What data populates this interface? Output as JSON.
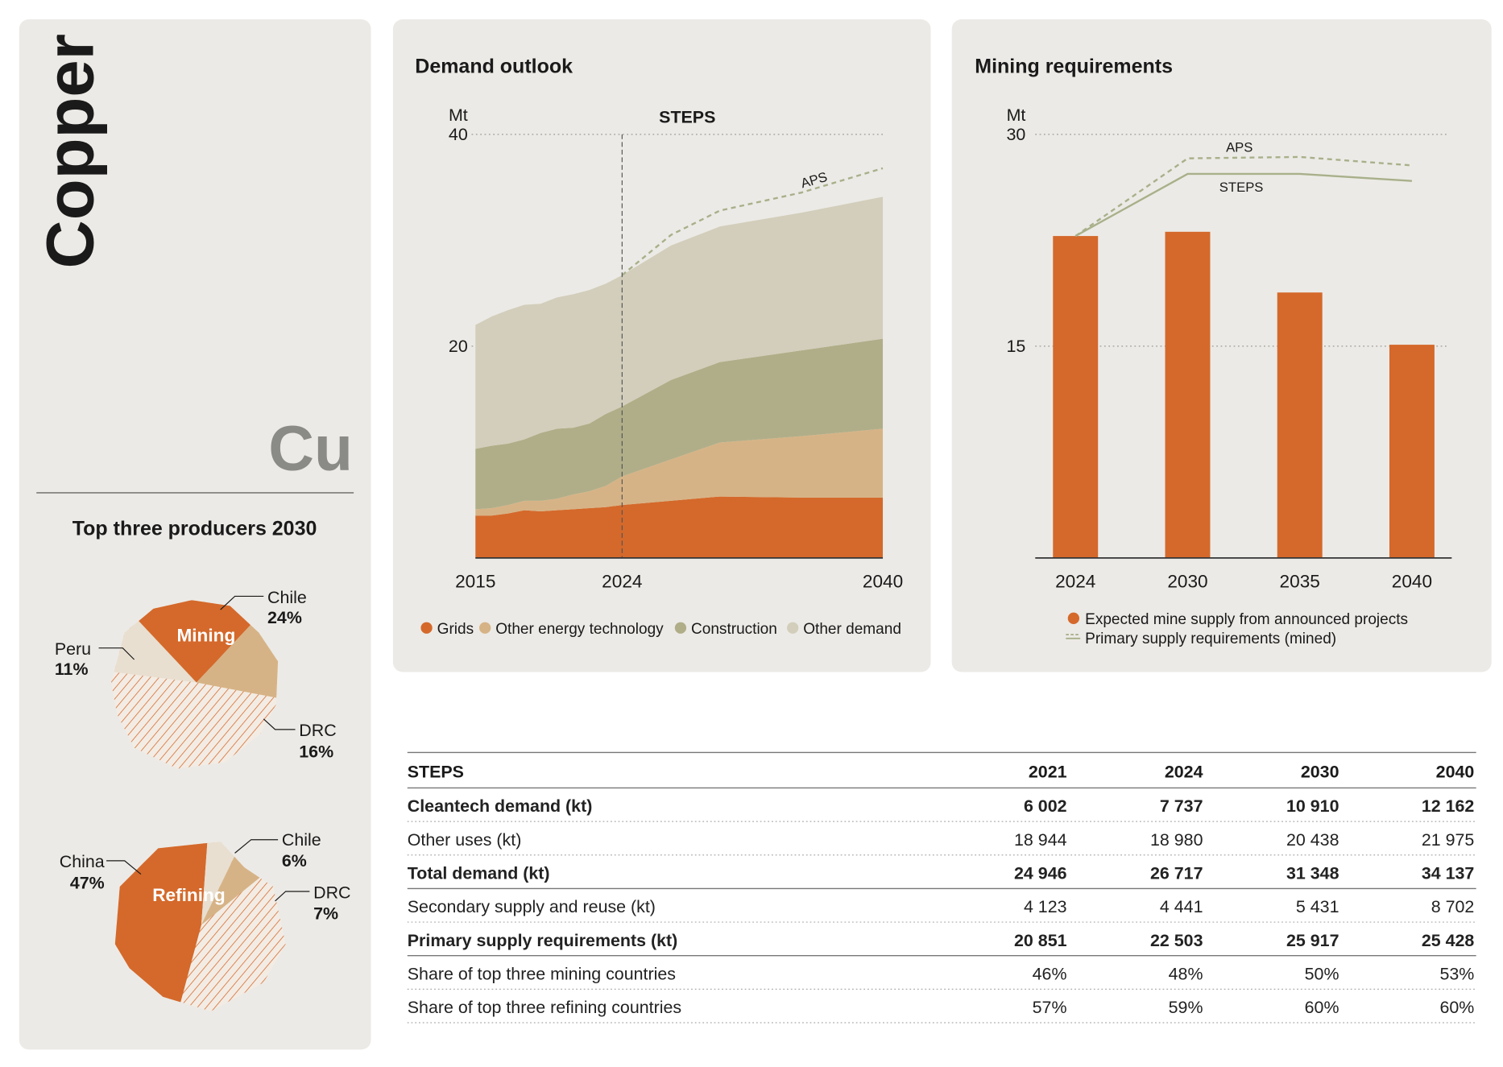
{
  "header": {
    "title": "Copper",
    "symbol": "Cu"
  },
  "producers": {
    "title": "Top three producers 2030",
    "charts": [
      {
        "label": "Mining",
        "countries": [
          "Peru",
          "Chile",
          "DRC"
        ],
        "values": [
          11,
          24,
          16
        ],
        "value_labels": [
          "11%",
          "24%",
          "16%"
        ],
        "colors": [
          "#E8DFD0",
          "#D4692B",
          "#D6B386"
        ]
      },
      {
        "label": "Refining",
        "countries": [
          "China",
          "Chile",
          "DRC"
        ],
        "values": [
          47,
          6,
          7
        ],
        "value_labels": [
          "47%",
          "6%",
          "7%"
        ],
        "colors": [
          "#D4692B",
          "#E8DFD0",
          "#D6B386"
        ]
      }
    ]
  },
  "chart_data": [
    {
      "type": "area",
      "title": "Demand outlook",
      "y_label": "Mt",
      "stacked": true,
      "grid": true,
      "x": [
        2015,
        2016,
        2017,
        2018,
        2019,
        2020,
        2021,
        2022,
        2023,
        2024,
        2027,
        2030,
        2035,
        2040
      ],
      "xlim": [
        2015,
        2040
      ],
      "xticks": [
        2015,
        2024,
        2040
      ],
      "ylim": [
        0,
        40
      ],
      "yticks": [
        20,
        40
      ],
      "series": [
        {
          "name": "Grids",
          "color": "#D4692B",
          "values": [
            4.0,
            4.0,
            4.2,
            4.5,
            4.4,
            4.5,
            4.6,
            4.7,
            4.8,
            5.0,
            5.4,
            5.8,
            5.7,
            5.7
          ]
        },
        {
          "name": "Other energy technology",
          "color": "#D6B386",
          "values": [
            0.6,
            0.7,
            0.8,
            0.9,
            1.0,
            1.1,
            1.4,
            1.6,
            2.0,
            2.7,
            3.9,
            5.1,
            5.8,
            6.5
          ]
        },
        {
          "name": "Construction",
          "color": "#B0AE88",
          "values": [
            5.7,
            5.9,
            5.8,
            5.8,
            6.4,
            6.6,
            6.3,
            6.4,
            6.8,
            6.6,
            7.5,
            7.6,
            8.1,
            8.5
          ]
        },
        {
          "name": "Other demand",
          "color": "#D2CEBB",
          "values": [
            11.7,
            12.2,
            12.6,
            12.7,
            12.2,
            12.4,
            12.6,
            12.6,
            12.3,
            12.4,
            12.7,
            12.8,
            13.0,
            13.4
          ]
        }
      ],
      "marker": {
        "x": 2024,
        "label": "STEPS"
      },
      "scenario_lines": [
        {
          "name": "APS",
          "color": "#A8B08A",
          "dashed": true,
          "values": [
            null,
            null,
            null,
            null,
            null,
            null,
            null,
            null,
            null,
            26.7,
            30.5,
            32.8,
            34.5,
            36.8
          ]
        }
      ]
    },
    {
      "type": "bar",
      "title": "Mining requirements",
      "y_label": "Mt",
      "grid": true,
      "categories": [
        "2024",
        "2030",
        "2035",
        "2040"
      ],
      "ylim": [
        0,
        30
      ],
      "yticks": [
        15,
        30
      ],
      "series": [
        {
          "name": "Expected mine supply from announced projects",
          "color": "#D4692B",
          "values": [
            22.8,
            23.1,
            18.8,
            15.1
          ]
        }
      ],
      "lines_legend": "Primary supply requirements (mined)",
      "lines": [
        {
          "name": "APS",
          "color": "#A8B08A",
          "dashed": true,
          "values": [
            22.8,
            28.3,
            28.4,
            27.8
          ]
        },
        {
          "name": "STEPS",
          "color": "#A8B08A",
          "dashed": false,
          "values": [
            22.8,
            27.2,
            27.2,
            26.7
          ]
        }
      ]
    }
  ],
  "table": {
    "header": [
      "STEPS",
      "2021",
      "2024",
      "2030",
      "2040"
    ],
    "rows": [
      [
        "Cleantech demand (kt)",
        "6 002",
        "7 737",
        "10 910",
        "12 162"
      ],
      [
        "Other uses (kt)",
        "18 944",
        "18 980",
        "20 438",
        "21 975"
      ],
      [
        "Total demand (kt)",
        "24 946",
        "26 717",
        "31 348",
        "34 137"
      ],
      [
        "Secondary supply and reuse (kt)",
        "4 123",
        "4 441",
        "5 431",
        "8 702"
      ],
      [
        "Primary supply requirements (kt)",
        "20 851",
        "22 503",
        "25 917",
        "25 428"
      ],
      [
        "Share of top three mining countries",
        "46%",
        "48%",
        "50%",
        "53%"
      ],
      [
        "Share of top three refining countries",
        "57%",
        "59%",
        "60%",
        "60%"
      ]
    ],
    "bold_rows": [
      0,
      2,
      4
    ]
  }
}
